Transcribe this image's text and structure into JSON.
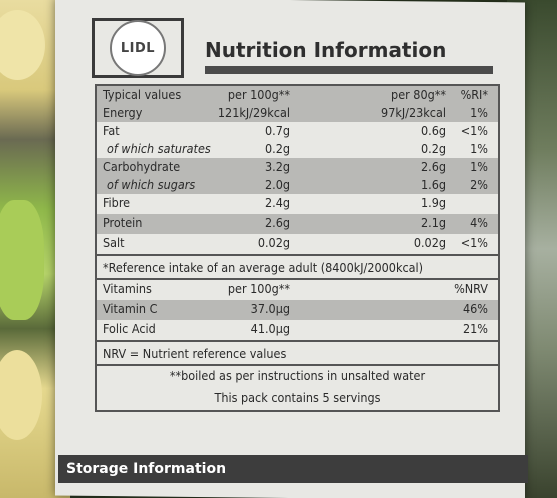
{
  "brand": "LIDL",
  "title": "Nutrition Information",
  "header": {
    "label": "Typical values",
    "per100": "per 100g**",
    "per80": "per 80g**",
    "ri": "%RI*"
  },
  "rows": [
    {
      "name": "Energy",
      "per100": "121kJ/29kcal",
      "per80": "97kJ/23kcal",
      "ri": "1%"
    },
    {
      "name": "Fat",
      "per100": "0.7g",
      "per80": "0.6g",
      "ri": "<1%"
    },
    {
      "name": "of which saturates",
      "per100": "0.2g",
      "per80": "0.2g",
      "ri": "1%"
    },
    {
      "name": "Carbohydrate",
      "per100": "3.2g",
      "per80": "2.6g",
      "ri": "1%"
    },
    {
      "name": "of which sugars",
      "per100": "2.0g",
      "per80": "1.6g",
      "ri": "2%"
    },
    {
      "name": "Fibre",
      "per100": "2.4g",
      "per80": "1.9g",
      "ri": ""
    },
    {
      "name": "Protein",
      "per100": "2.6g",
      "per80": "2.1g",
      "ri": "4%"
    },
    {
      "name": "Salt",
      "per100": "0.02g",
      "per80": "0.02g",
      "ri": "<1%"
    }
  ],
  "reference_note": "*Reference intake of an average adult (8400kJ/2000kcal)",
  "vitamins_header": {
    "label": "Vitamins",
    "per100": "per 100g**",
    "nrv": "%NRV"
  },
  "vitamins": [
    {
      "name": "Vitamin C",
      "per100": "37.0µg",
      "nrv": "46%"
    },
    {
      "name": "Folic Acid",
      "per100": "41.0µg",
      "nrv": "21%"
    }
  ],
  "nrv_note": "NRV = Nutrient reference values",
  "boiled_note": "**boiled as per instructions in unsalted water",
  "servings_note": "This pack contains 5 servings",
  "storage_heading": "Storage Information"
}
